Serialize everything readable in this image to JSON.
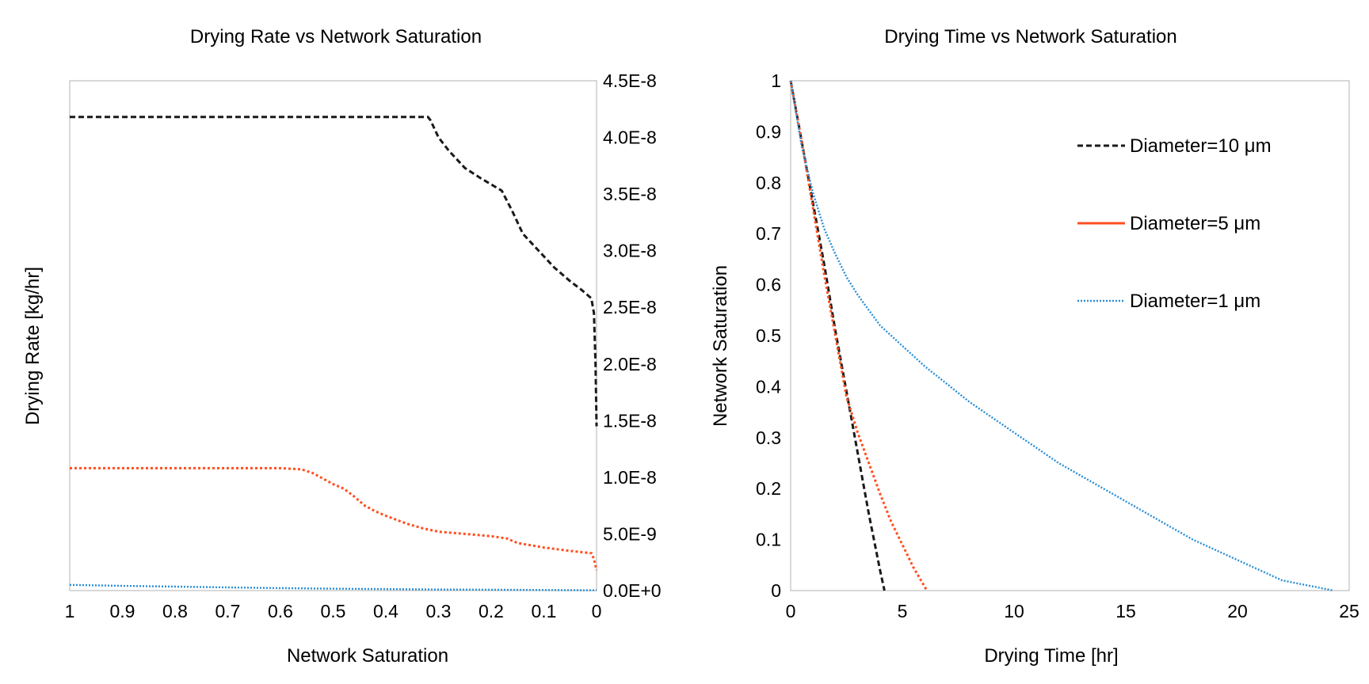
{
  "colors": {
    "black_series": "#1a1a1a",
    "orange_series": "#ff4f1f",
    "blue_series": "#2a8ed6",
    "frame": "#b3b3b3"
  },
  "chart_data": [
    {
      "type": "line",
      "title": "Drying Rate vs Network Saturation",
      "xlabel": "Network Saturation",
      "ylabel": "Drying Rate [kg/hr]",
      "xlim": [
        1,
        0
      ],
      "x_reversed": true,
      "x_ticks": [
        1,
        0.9,
        0.8,
        0.7,
        0.6,
        0.5,
        0.4,
        0.3,
        0.2,
        0.1,
        0
      ],
      "x_tick_labels": [
        "1",
        "0.9",
        "0.8",
        "0.7",
        "0.6",
        "0.5",
        "0.4",
        "0.3",
        "0.2",
        "0.1",
        "0"
      ],
      "ylim": [
        0,
        4.5e-08
      ],
      "y_axis_side": "right",
      "y_ticks": [
        0,
        5e-09,
        1e-08,
        1.5e-08,
        2e-08,
        2.5e-08,
        3e-08,
        3.5e-08,
        4e-08,
        4.5e-08
      ],
      "y_tick_labels": [
        "0.0E+0",
        "5.0E-9",
        "1.0E-8",
        "1.5E-8",
        "2.0E-8",
        "2.5E-8",
        "3.0E-8",
        "3.5E-8",
        "4.0E-8",
        "4.5E-8"
      ],
      "grid": false,
      "series": [
        {
          "style": "dashed",
          "color_key": "black_series",
          "x": [
            1,
            0.9,
            0.8,
            0.7,
            0.6,
            0.5,
            0.4,
            0.32,
            0.315,
            0.3,
            0.28,
            0.25,
            0.22,
            0.18,
            0.16,
            0.14,
            0.12,
            0.1,
            0.08,
            0.05,
            0.03,
            0.01,
            0.005,
            0.002,
            0
          ],
          "y": [
            4.18e-08,
            4.18e-08,
            4.18e-08,
            4.18e-08,
            4.18e-08,
            4.18e-08,
            4.18e-08,
            4.18e-08,
            4.15e-08,
            4e-08,
            3.88e-08,
            3.73e-08,
            3.64e-08,
            3.53e-08,
            3.35e-08,
            3.15e-08,
            3.05e-08,
            2.95e-08,
            2.85e-08,
            2.73e-08,
            2.66e-08,
            2.58e-08,
            2.45e-08,
            2e-08,
            1.45e-08
          ]
        },
        {
          "style": "mixed-dotted",
          "color_key": "orange_series",
          "x": [
            1,
            0.9,
            0.8,
            0.7,
            0.6,
            0.56,
            0.54,
            0.52,
            0.5,
            0.48,
            0.46,
            0.44,
            0.42,
            0.4,
            0.36,
            0.33,
            0.3,
            0.25,
            0.2,
            0.17,
            0.15,
            0.1,
            0.05,
            0.01,
            0.005,
            0
          ],
          "y": [
            1.08e-08,
            1.08e-08,
            1.08e-08,
            1.08e-08,
            1.08e-08,
            1.07e-08,
            1.04e-08,
            9.9e-09,
            9.4e-09,
            9e-09,
            8.3e-09,
            7.5e-09,
            7e-09,
            6.6e-09,
            5.9e-09,
            5.5e-09,
            5.2e-09,
            5e-09,
            4.8e-09,
            4.6e-09,
            4.2e-09,
            3.8e-09,
            3.5e-09,
            3.3e-09,
            2.8e-09,
            1.8e-09
          ]
        },
        {
          "style": "dotted",
          "color_key": "blue_series",
          "x": [
            1,
            0.9,
            0.8,
            0.7,
            0.6,
            0.5,
            0.4,
            0.3,
            0.2,
            0.1,
            0
          ],
          "y": [
            5e-10,
            4.2e-10,
            3.5e-10,
            2.8e-10,
            2.2e-10,
            1.7e-10,
            1.3e-10,
            1e-10,
            8e-11,
            5e-11,
            3e-11
          ]
        }
      ]
    },
    {
      "type": "line",
      "title": "Drying Time vs Network Saturation",
      "xlabel": "Drying Time [hr]",
      "ylabel": "Network Saturation",
      "xlim": [
        0,
        25
      ],
      "x_ticks": [
        0,
        5,
        10,
        15,
        20,
        25
      ],
      "x_tick_labels": [
        "0",
        "5",
        "10",
        "15",
        "20",
        "25"
      ],
      "ylim": [
        0,
        1
      ],
      "y_ticks": [
        0,
        0.1,
        0.2,
        0.3,
        0.4,
        0.5,
        0.6,
        0.7,
        0.8,
        0.9,
        1
      ],
      "y_tick_labels": [
        "0",
        "0.1",
        "0.2",
        "0.3",
        "0.4",
        "0.5",
        "0.6",
        "0.7",
        "0.8",
        "0.9",
        "1"
      ],
      "grid": false,
      "legend": "top-right",
      "series": [
        {
          "name": "Diameter=10 μm",
          "style": "dashed",
          "color_key": "black_series",
          "x": [
            0,
            0.5,
            1,
            1.5,
            2,
            2.5,
            3,
            3.5,
            4,
            4.2
          ],
          "y": [
            1,
            0.88,
            0.76,
            0.64,
            0.51,
            0.39,
            0.27,
            0.15,
            0.04,
            0
          ]
        },
        {
          "name": "Diameter=5 μm",
          "style": "mixed-dotted",
          "color_key": "orange_series",
          "x": [
            0,
            0.5,
            1,
            1.5,
            2,
            2.5,
            3,
            3.5,
            4,
            4.5,
            5,
            5.5,
            6.1
          ],
          "y": [
            1,
            0.88,
            0.75,
            0.62,
            0.5,
            0.38,
            0.31,
            0.25,
            0.19,
            0.135,
            0.09,
            0.045,
            0
          ]
        },
        {
          "name": "Diameter=1 μm",
          "style": "dotted",
          "color_key": "blue_series",
          "x": [
            0,
            0.5,
            1,
            1.5,
            2,
            2.5,
            3,
            4,
            5,
            6,
            8,
            10,
            12,
            14,
            16,
            18,
            20,
            22,
            24.3
          ],
          "y": [
            1,
            0.87,
            0.78,
            0.71,
            0.66,
            0.615,
            0.58,
            0.52,
            0.48,
            0.44,
            0.37,
            0.31,
            0.25,
            0.2,
            0.15,
            0.1,
            0.06,
            0.02,
            0
          ]
        }
      ]
    }
  ]
}
